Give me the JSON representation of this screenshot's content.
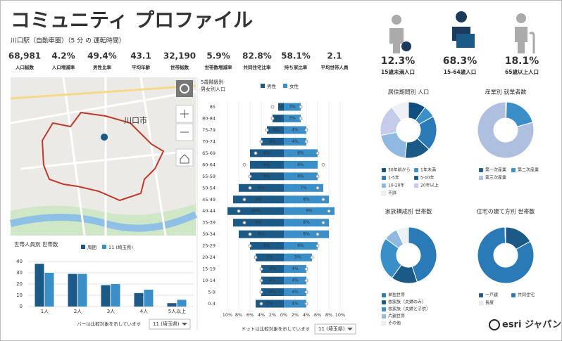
{
  "header": {
    "title": "コミュニティ プロファイル",
    "subtitle": "川口駅（自動車圏）（5 分 の 運転時間）"
  },
  "stats": [
    {
      "value": "68,981",
      "label": "人口総数"
    },
    {
      "value": "4.2%",
      "label": "人口増減率"
    },
    {
      "value": "49.4%",
      "label": "男性比率"
    },
    {
      "value": "43.1",
      "label": "平均年齢"
    },
    {
      "value": "32,190",
      "label": "世帯総数"
    },
    {
      "value": "5.9%",
      "label": "世帯数増減率"
    },
    {
      "value": "82.8%",
      "label": "共同住宅比率"
    },
    {
      "value": "58.1%",
      "label": "持ち家比率"
    },
    {
      "value": "2.1",
      "label": "平均世帯人員"
    }
  ],
  "age_stats": [
    {
      "value": "12.3%",
      "label": "15歳未満人口"
    },
    {
      "value": "68.3%",
      "label": "15-64歳人口"
    },
    {
      "value": "18.1%",
      "label": "65歳以上人口"
    }
  ],
  "map": {
    "label": "川口市"
  },
  "footer": {
    "logo": "esri ジャパン"
  },
  "chart_data": [
    {
      "type": "bar",
      "title": "世帯人員別 世帯数",
      "categories": [
        "1人",
        "2人",
        "3人",
        "4人",
        "5人以上"
      ],
      "series": [
        {
          "name": "周囲",
          "color": "#1b5a87",
          "values": [
            38,
            29,
            19,
            12,
            3
          ]
        },
        {
          "name": "11 (埼玉県)",
          "color": "#3a8fc9",
          "values": [
            30,
            29,
            20,
            15,
            6
          ]
        }
      ],
      "ylim": [
        0,
        40
      ],
      "yticks": [
        0,
        10,
        20,
        30,
        40
      ],
      "grid": true,
      "note": "バーは比較対象を示しています",
      "selector": "11 (埼玉県)"
    },
    {
      "type": "pyramid",
      "title": "5歳階級別",
      "subtitle": "男女別人口",
      "categories": [
        "85",
        "80-84",
        "75-79",
        "70-74",
        "65-69",
        "60-64",
        "55-59",
        "50-54",
        "45-49",
        "40-44",
        "35-39",
        "30-34",
        "25-29",
        "20-24",
        "15-19",
        "10-14",
        "5-9",
        "0-4"
      ],
      "series": [
        {
          "name": "男性",
          "color": "#1b5a87",
          "side": "left",
          "values": [
            1,
            2,
            3,
            4,
            6,
            6,
            6,
            8,
            9,
            10,
            9,
            8,
            6,
            5,
            4,
            4,
            4,
            5
          ],
          "value_labels": [
            "1%",
            "2%",
            "3%",
            "4%",
            "6%",
            "6%",
            "6%",
            "8%",
            "9%",
            "10%",
            "9%",
            "8%",
            "6%",
            "5%",
            "4%",
            "4%",
            "4%",
            "5%"
          ],
          "comparison": [
            2,
            2,
            3,
            4,
            5,
            7,
            6,
            6,
            7,
            8,
            7,
            6,
            6,
            5,
            4,
            4,
            4,
            4
          ]
        },
        {
          "name": "女性",
          "color": "#3a8fc9",
          "side": "right",
          "values": [
            3,
            3,
            4,
            4,
            6,
            6,
            6,
            7,
            8,
            9,
            8,
            8,
            6,
            5,
            4,
            4,
            4,
            4
          ],
          "value_labels": [
            "3%",
            "3%",
            "4%",
            "4%",
            "6%",
            "6%",
            "6%",
            "7%",
            "8%",
            "9%",
            "8%",
            "8%",
            "6%",
            "5%",
            "4%",
            "4%",
            "4%",
            "4%"
          ],
          "comparison": [
            3,
            3,
            4,
            4,
            6,
            7,
            6,
            6,
            7,
            8,
            7,
            6,
            6,
            5,
            4,
            4,
            4,
            4
          ]
        }
      ],
      "xlim": [
        -11,
        11
      ],
      "xticks": [
        {
          "value": -10,
          "label": "10%"
        },
        {
          "value": -8,
          "label": "8%"
        },
        {
          "value": -6,
          "label": "6%"
        },
        {
          "value": -4,
          "label": "4%"
        },
        {
          "value": -2,
          "label": "2%"
        },
        {
          "value": 0,
          "label": "0%"
        },
        {
          "value": 2,
          "label": "2%"
        },
        {
          "value": 4,
          "label": "4%"
        },
        {
          "value": 6,
          "label": "6%"
        },
        {
          "value": 8,
          "label": "8%"
        },
        {
          "value": 10,
          "label": "10%"
        }
      ],
      "note": "ドットは比較対象を示しています",
      "selector": "11 (埼玉県)"
    },
    {
      "type": "pie",
      "donut": true,
      "title": "居住期間別 人口",
      "categories": [
        "30年前から",
        "1年未満",
        "1-5年",
        "5-10年",
        "10-20年",
        "20年以上",
        "不詳"
      ],
      "colors": [
        "#0f4f80",
        "#3a8fc9",
        "#2a7ab8",
        "#1b5a87",
        "#8fb9e0",
        "#c5cbea",
        "#eef0f6"
      ],
      "values": [
        10,
        7,
        20,
        15,
        20,
        18,
        10
      ]
    },
    {
      "type": "pie",
      "donut": true,
      "title": "産業別 就業者数",
      "categories": [
        "第一次産業",
        "第二次産業",
        "第三次産業"
      ],
      "colors": [
        "#1b5a87",
        "#3a8fc9",
        "#aebfe0"
      ],
      "values": [
        0.5,
        20,
        79.5
      ]
    },
    {
      "type": "pie",
      "donut": true,
      "title": "家族構成別 世帯数",
      "categories": [
        "単独世帯",
        "核家族（夫婦のみ）",
        "核家族（夫婦と子供）",
        "片親世帯",
        "その他"
      ],
      "colors": [
        "#2a7ab8",
        "#1b5a87",
        "#3a8fc9",
        "#8fb9e0",
        "#eef0f6"
      ],
      "values": [
        45,
        15,
        25,
        8,
        7
      ]
    },
    {
      "type": "pie",
      "donut": true,
      "title": "住宅の建て方別 世帯数",
      "categories": [
        "一戸建",
        "共同住宅",
        "長屋"
      ],
      "colors": [
        "#1b5a87",
        "#2a7ab8",
        "#e6eaf4"
      ],
      "values": [
        16.8,
        82.8,
        0.4
      ]
    }
  ]
}
